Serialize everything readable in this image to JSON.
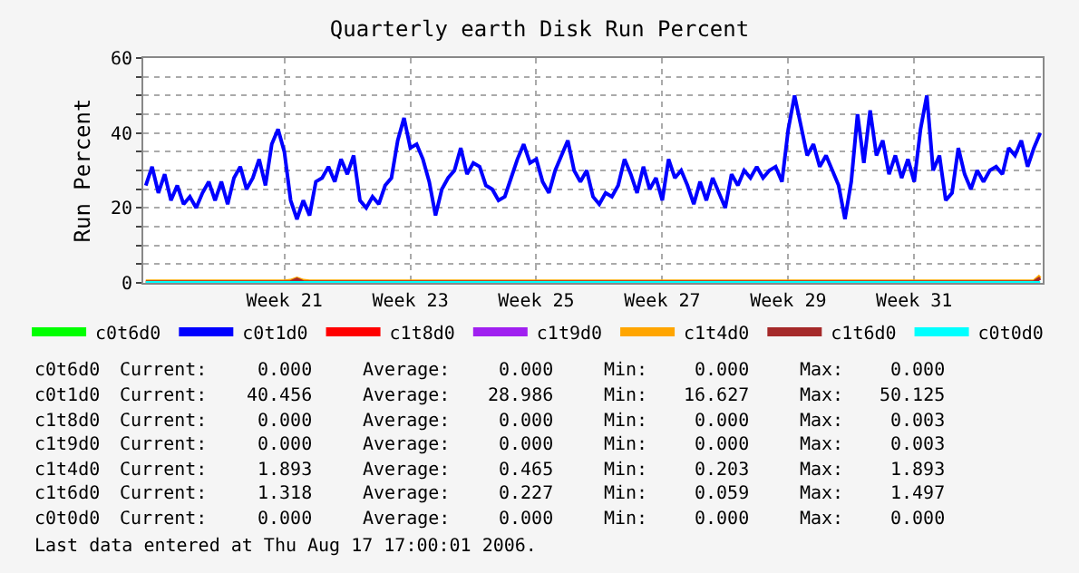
{
  "chart_data": {
    "type": "line",
    "title": "Quarterly earth Disk Run Percent",
    "ylabel": "Run Percent",
    "categories": [
      null,
      null,
      null,
      null,
      null,
      null,
      null,
      null,
      null,
      null,
      null,
      null,
      null,
      null,
      null,
      null,
      null,
      null,
      null,
      null,
      null,
      null,
      "Week 21",
      null,
      null,
      null,
      null,
      null,
      null,
      null,
      null,
      null,
      null,
      null,
      null,
      null,
      null,
      null,
      null,
      null,
      null,
      null,
      "Week 23",
      null,
      null,
      null,
      null,
      null,
      null,
      null,
      null,
      null,
      null,
      null,
      null,
      null,
      null,
      null,
      null,
      null,
      null,
      null,
      "Week 25",
      null,
      null,
      null,
      null,
      null,
      null,
      null,
      null,
      null,
      null,
      null,
      null,
      null,
      null,
      null,
      null,
      null,
      null,
      null,
      "Week 27",
      null,
      null,
      null,
      null,
      null,
      null,
      null,
      null,
      null,
      null,
      null,
      null,
      null,
      null,
      null,
      null,
      null,
      null,
      null,
      "Week 29",
      null,
      null,
      null,
      null,
      null,
      null,
      null,
      null,
      null,
      null,
      null,
      null,
      null,
      null,
      null,
      null,
      null,
      null,
      null,
      "Week 31",
      null,
      null,
      null,
      null,
      null,
      null,
      null,
      null,
      null,
      null,
      null,
      null,
      null,
      null,
      null,
      null,
      null,
      null,
      null,
      null
    ],
    "ylim": [
      0,
      60
    ],
    "yticks": [
      0,
      {
        "value": 5,
        "label": null
      },
      {
        "value": 10,
        "label": null
      },
      {
        "value": 15,
        "label": null
      },
      20,
      {
        "value": 25,
        "label": null
      },
      {
        "value": 30,
        "label": null
      },
      {
        "value": 35,
        "label": null
      },
      40,
      {
        "value": 45,
        "label": null
      },
      {
        "value": 50,
        "label": null
      },
      {
        "value": 55,
        "label": null
      },
      60
    ],
    "grid": true,
    "legend": "bottom",
    "series": [
      {
        "name": "c0t6d0",
        "color": "#00ff00",
        "values": [
          null,
          null,
          null,
          null,
          null,
          null,
          null,
          null,
          null,
          null,
          null,
          null,
          null,
          null,
          null,
          null,
          null,
          null,
          null,
          null,
          null,
          null,
          null,
          null,
          null,
          null,
          null,
          null,
          null,
          null,
          null,
          null,
          null,
          null,
          null,
          null,
          null,
          null,
          null,
          null,
          null,
          null,
          null,
          null,
          null,
          null,
          null,
          null,
          null,
          null,
          null,
          null,
          null,
          null,
          null,
          null,
          null,
          null,
          null,
          null,
          null,
          null,
          null,
          null,
          null,
          null,
          null,
          null,
          null,
          null,
          null,
          null,
          null,
          null,
          null,
          null,
          null,
          null,
          null,
          null,
          null,
          null,
          null,
          null,
          null,
          null,
          null,
          null,
          null,
          null,
          null,
          null,
          null,
          null,
          null,
          null,
          null,
          null,
          null,
          null,
          null,
          null,
          null,
          null,
          null,
          null,
          null,
          null,
          null,
          null,
          null,
          null,
          null,
          null,
          null,
          null,
          null,
          null,
          null,
          null,
          null,
          null,
          null,
          null,
          null,
          null,
          null,
          null,
          null,
          null,
          null,
          null,
          null,
          null,
          null,
          null,
          null,
          null,
          null,
          null,
          null,
          null,
          null
        ]
      },
      {
        "name": "c0t1d0",
        "color": "#0000ff",
        "values": [
          26,
          31,
          24,
          29,
          22,
          26,
          21,
          23,
          20,
          24,
          27,
          22,
          27,
          21,
          28,
          31,
          25,
          28,
          33,
          26,
          37,
          41,
          35,
          22,
          17,
          22,
          18,
          27,
          28,
          31,
          27,
          33,
          29,
          34,
          22,
          20,
          23,
          21,
          26,
          28,
          38,
          44,
          36,
          37,
          33,
          27,
          18,
          25,
          28,
          30,
          36,
          29,
          32,
          31,
          26,
          25,
          22,
          23,
          28,
          33,
          37,
          32,
          33,
          27,
          24,
          30,
          34,
          38,
          30,
          27,
          30,
          23,
          21,
          24,
          23,
          26,
          33,
          29,
          24,
          31,
          25,
          28,
          22,
          33,
          28,
          30,
          26,
          21,
          27,
          22,
          28,
          24,
          20,
          29,
          26,
          30,
          28,
          31,
          28,
          30,
          31,
          27,
          41,
          50,
          42,
          34,
          37,
          31,
          34,
          30,
          26,
          17,
          27,
          45,
          32,
          46,
          34,
          38,
          29,
          34,
          28,
          33,
          27,
          41,
          50,
          30,
          34,
          22,
          24,
          36,
          29,
          25,
          30,
          27,
          30,
          31,
          29,
          36,
          34,
          38,
          31,
          36,
          40
        ]
      },
      {
        "name": "c1t8d0",
        "color": "#ff0000",
        "values": [
          null,
          null,
          null,
          null,
          null,
          null,
          null,
          null,
          null,
          null,
          null,
          null,
          null,
          null,
          null,
          null,
          null,
          null,
          null,
          null,
          null,
          null,
          null,
          null,
          null,
          null,
          null,
          null,
          null,
          null,
          null,
          null,
          null,
          null,
          null,
          null,
          null,
          null,
          null,
          null,
          null,
          null,
          null,
          null,
          null,
          null,
          null,
          null,
          null,
          null,
          null,
          null,
          null,
          null,
          null,
          null,
          null,
          null,
          null,
          null,
          null,
          null,
          null,
          null,
          null,
          null,
          null,
          null,
          null,
          null,
          null,
          null,
          null,
          null,
          null,
          null,
          null,
          null,
          null,
          null,
          null,
          null,
          null,
          null,
          null,
          null,
          null,
          null,
          null,
          null,
          null,
          null,
          null,
          null,
          null,
          null,
          null,
          null,
          null,
          null,
          null,
          null,
          null,
          null,
          null,
          null,
          null,
          null,
          null,
          null,
          null,
          null,
          null,
          null,
          null,
          null,
          null,
          null,
          null,
          null,
          null,
          null,
          null,
          null,
          null,
          null,
          null,
          null,
          null,
          null,
          null,
          null,
          null,
          null,
          null,
          null,
          null,
          null,
          null,
          null,
          null,
          null,
          null
        ]
      },
      {
        "name": "c1t9d0",
        "color": "#a020f0",
        "values": [
          null,
          null,
          null,
          null,
          null,
          null,
          null,
          null,
          null,
          null,
          null,
          null,
          null,
          null,
          null,
          null,
          null,
          null,
          null,
          null,
          null,
          null,
          null,
          null,
          null,
          null,
          null,
          null,
          null,
          null,
          null,
          null,
          null,
          null,
          null,
          null,
          null,
          null,
          null,
          null,
          null,
          null,
          null,
          null,
          null,
          null,
          null,
          null,
          null,
          null,
          null,
          null,
          null,
          null,
          null,
          null,
          null,
          null,
          null,
          null,
          null,
          null,
          null,
          null,
          null,
          null,
          null,
          null,
          null,
          null,
          null,
          null,
          null,
          null,
          null,
          null,
          null,
          null,
          null,
          null,
          null,
          null,
          null,
          null,
          null,
          null,
          null,
          null,
          null,
          null,
          null,
          null,
          null,
          null,
          null,
          null,
          null,
          null,
          null,
          null,
          null,
          null,
          null,
          null,
          null,
          null,
          null,
          null,
          null,
          null,
          null,
          null,
          null,
          null,
          null,
          null,
          null,
          null,
          null,
          null,
          null,
          null,
          null,
          null,
          null,
          null,
          null,
          null,
          null,
          null,
          null,
          null,
          null,
          null,
          null,
          null,
          null,
          null,
          null,
          null,
          null,
          null,
          null
        ]
      },
      {
        "name": "c1t4d0",
        "color": "#ffa500",
        "values": [
          0.4,
          0.4,
          0.4,
          0.4,
          0.4,
          0.4,
          0.4,
          0.4,
          0.4,
          0.4,
          0.4,
          0.4,
          0.4,
          0.4,
          0.4,
          0.4,
          0.4,
          0.4,
          0.4,
          0.4,
          0.4,
          0.4,
          0.4,
          0.6,
          1.2,
          0.6,
          0.4,
          0.4,
          0.4,
          0.4,
          0.4,
          0.4,
          0.4,
          0.4,
          0.4,
          0.4,
          0.4,
          0.4,
          0.4,
          0.4,
          0.4,
          0.4,
          0.4,
          0.4,
          0.4,
          0.4,
          0.4,
          0.4,
          0.4,
          0.4,
          0.4,
          0.4,
          0.4,
          0.4,
          0.4,
          0.4,
          0.4,
          0.4,
          0.4,
          0.4,
          0.4,
          0.4,
          0.4,
          0.4,
          0.4,
          0.4,
          0.4,
          0.4,
          0.4,
          0.4,
          0.4,
          0.4,
          0.4,
          0.4,
          0.4,
          0.4,
          0.4,
          0.4,
          0.4,
          0.4,
          0.4,
          0.4,
          0.4,
          0.4,
          0.4,
          0.4,
          0.4,
          0.4,
          0.4,
          0.4,
          0.4,
          0.4,
          0.4,
          0.4,
          0.4,
          0.4,
          0.4,
          0.4,
          0.4,
          0.4,
          0.4,
          0.4,
          0.4,
          0.4,
          0.4,
          0.4,
          0.4,
          0.4,
          0.4,
          0.4,
          0.4,
          0.4,
          0.4,
          0.4,
          0.4,
          0.4,
          0.4,
          0.4,
          0.4,
          0.4,
          0.4,
          0.4,
          0.4,
          0.4,
          0.4,
          0.4,
          0.4,
          0.4,
          0.4,
          0.4,
          0.4,
          0.4,
          0.4,
          0.4,
          0.4,
          0.4,
          0.4,
          0.4,
          0.4,
          0.4,
          0.4,
          0.4,
          1.9
        ]
      },
      {
        "name": "c1t6d0",
        "color": "#a52a2a",
        "values": [
          0.2,
          0.2,
          0.2,
          0.2,
          0.2,
          0.2,
          0.2,
          0.2,
          0.2,
          0.2,
          0.2,
          0.2,
          0.2,
          0.2,
          0.2,
          0.2,
          0.2,
          0.2,
          0.2,
          0.2,
          0.2,
          0.2,
          0.2,
          0.2,
          0.9,
          0.2,
          0.2,
          0.2,
          0.2,
          0.2,
          0.2,
          0.2,
          0.2,
          0.2,
          0.2,
          0.2,
          0.2,
          0.2,
          0.2,
          0.2,
          0.2,
          0.2,
          0.2,
          0.2,
          0.2,
          0.2,
          0.2,
          0.2,
          0.2,
          0.2,
          0.2,
          0.2,
          0.2,
          0.2,
          0.2,
          0.2,
          0.2,
          0.2,
          0.2,
          0.2,
          0.2,
          0.2,
          0.2,
          0.2,
          0.2,
          0.2,
          0.2,
          0.2,
          0.2,
          0.2,
          0.2,
          0.2,
          0.2,
          0.2,
          0.2,
          0.2,
          0.2,
          0.2,
          0.2,
          0.2,
          0.2,
          0.2,
          0.2,
          0.2,
          0.2,
          0.2,
          0.2,
          0.2,
          0.2,
          0.2,
          0.2,
          0.2,
          0.2,
          0.2,
          0.2,
          0.2,
          0.2,
          0.2,
          0.2,
          0.2,
          0.2,
          0.2,
          0.2,
          0.2,
          0.2,
          0.2,
          0.2,
          0.2,
          0.2,
          0.2,
          0.2,
          0.2,
          0.2,
          0.2,
          0.2,
          0.2,
          0.2,
          0.2,
          0.2,
          0.2,
          0.2,
          0.2,
          0.2,
          0.2,
          0.2,
          0.2,
          0.2,
          0.2,
          0.2,
          0.2,
          0.2,
          0.2,
          0.2,
          0.2,
          0.2,
          0.2,
          0.2,
          0.2,
          0.2,
          0.2,
          0.2,
          0.2,
          1.3
        ]
      },
      {
        "name": "c0t0d0",
        "color": "#00ffff",
        "values": [
          0,
          0,
          0,
          0,
          0,
          0,
          0,
          0,
          0,
          0,
          0,
          0,
          0,
          0,
          0,
          0,
          0,
          0,
          0,
          0,
          0,
          0,
          0,
          0,
          0,
          0,
          0,
          0,
          0,
          0,
          0,
          0,
          0,
          0,
          0,
          0,
          0,
          0,
          0,
          0,
          0,
          0,
          0,
          0,
          0,
          0,
          0,
          0,
          0,
          0,
          0,
          0,
          0,
          0,
          0,
          0,
          0,
          0,
          0,
          0,
          0,
          0,
          0,
          0,
          0,
          0,
          0,
          0,
          0,
          0,
          0,
          0,
          0,
          0,
          0,
          0,
          0,
          0,
          0,
          0,
          0,
          0,
          0,
          0,
          0,
          0,
          0,
          0,
          0,
          0,
          0,
          0,
          0,
          0,
          0,
          0,
          0,
          0,
          0,
          0,
          0,
          0,
          0,
          0,
          0,
          0,
          0,
          0,
          0,
          0,
          0,
          0,
          0,
          0,
          0,
          0,
          0,
          0,
          0,
          0,
          0,
          0,
          0,
          0,
          0,
          0,
          0,
          0,
          0,
          0,
          0,
          0,
          0,
          0,
          0,
          0,
          0,
          0,
          0,
          0,
          0,
          0,
          0
        ]
      }
    ],
    "annotations": [
      "c0t6d0",
      "Current:",
      "0.000",
      "Average:",
      "0.000",
      "Min:",
      "0.000",
      "Max:",
      "0.000",
      "c0t1d0",
      "Current:",
      "40.456",
      "Average:",
      "28.986",
      "Min:",
      "16.627",
      "Max:",
      "50.125",
      "c1t8d0",
      "Current:",
      "0.000",
      "Average:",
      "0.000",
      "Min:",
      "0.000",
      "Max:",
      "0.003",
      "c1t9d0",
      "Current:",
      "0.000",
      "Average:",
      "0.000",
      "Min:",
      "0.000",
      "Max:",
      "0.003",
      "c1t4d0",
      "Current:",
      "1.893",
      "Average:",
      "0.465",
      "Min:",
      "0.203",
      "Max:",
      "1.893",
      "c1t6d0",
      "Current:",
      "1.318",
      "Average:",
      "0.227",
      "Min:",
      "0.059",
      "Max:",
      "1.497",
      "c0t0d0",
      "Current:",
      "0.000",
      "Average:",
      "0.000",
      "Min:",
      "0.000",
      "Max:",
      "0.000",
      "Last data entered at Thu Aug 17 17:00:01 2006."
    ]
  }
}
